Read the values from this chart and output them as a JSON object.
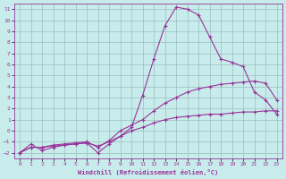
{
  "xlabel": "Windchill (Refroidissement éolien,°C)",
  "xlim_min": -0.5,
  "xlim_max": 23.5,
  "ylim_min": -2.5,
  "ylim_max": 11.5,
  "xticks": [
    0,
    1,
    2,
    3,
    4,
    5,
    6,
    7,
    8,
    9,
    10,
    11,
    12,
    13,
    14,
    15,
    16,
    17,
    18,
    19,
    20,
    21,
    22,
    23
  ],
  "yticks": [
    -2,
    -1,
    0,
    1,
    2,
    3,
    4,
    5,
    6,
    7,
    8,
    9,
    10,
    11
  ],
  "background_color": "#c8ecec",
  "grid_color": "#9bbfbf",
  "line_color": "#993399",
  "lines": [
    {
      "x": [
        0,
        1,
        2,
        3,
        4,
        5,
        6,
        7,
        8,
        9,
        10,
        11,
        12,
        13,
        14,
        15,
        16,
        17,
        18,
        19,
        20,
        21,
        22,
        23
      ],
      "y": [
        -2,
        -1.2,
        -1.8,
        -1.5,
        -1.3,
        -1.2,
        -1.1,
        -2,
        -1.2,
        -0.5,
        0.3,
        3.2,
        6.5,
        9.5,
        11.2,
        11.0,
        10.5,
        8.5,
        6.5,
        6.2,
        5.8,
        3.5,
        2.8,
        1.5
      ]
    },
    {
      "x": [
        0,
        1,
        2,
        3,
        4,
        5,
        6,
        7,
        8,
        9,
        10,
        11,
        12,
        13,
        14,
        15,
        16,
        17,
        18,
        19,
        20,
        21,
        22,
        23
      ],
      "y": [
        -2,
        -1.5,
        -1.5,
        -1.3,
        -1.2,
        -1.1,
        -1.0,
        -1.5,
        -0.9,
        0.0,
        0.5,
        1.0,
        1.8,
        2.5,
        3.0,
        3.5,
        3.8,
        4.0,
        4.2,
        4.3,
        4.4,
        4.5,
        4.3,
        2.8
      ]
    },
    {
      "x": [
        0,
        1,
        2,
        3,
        4,
        5,
        6,
        7,
        8,
        9,
        10,
        11,
        12,
        13,
        14,
        15,
        16,
        17,
        18,
        19,
        20,
        21,
        22,
        23
      ],
      "y": [
        -2,
        -1.5,
        -1.5,
        -1.4,
        -1.3,
        -1.2,
        -1.1,
        -1.4,
        -1.0,
        -0.5,
        0.0,
        0.3,
        0.7,
        1.0,
        1.2,
        1.3,
        1.4,
        1.5,
        1.5,
        1.6,
        1.7,
        1.7,
        1.8,
        1.8
      ]
    }
  ]
}
